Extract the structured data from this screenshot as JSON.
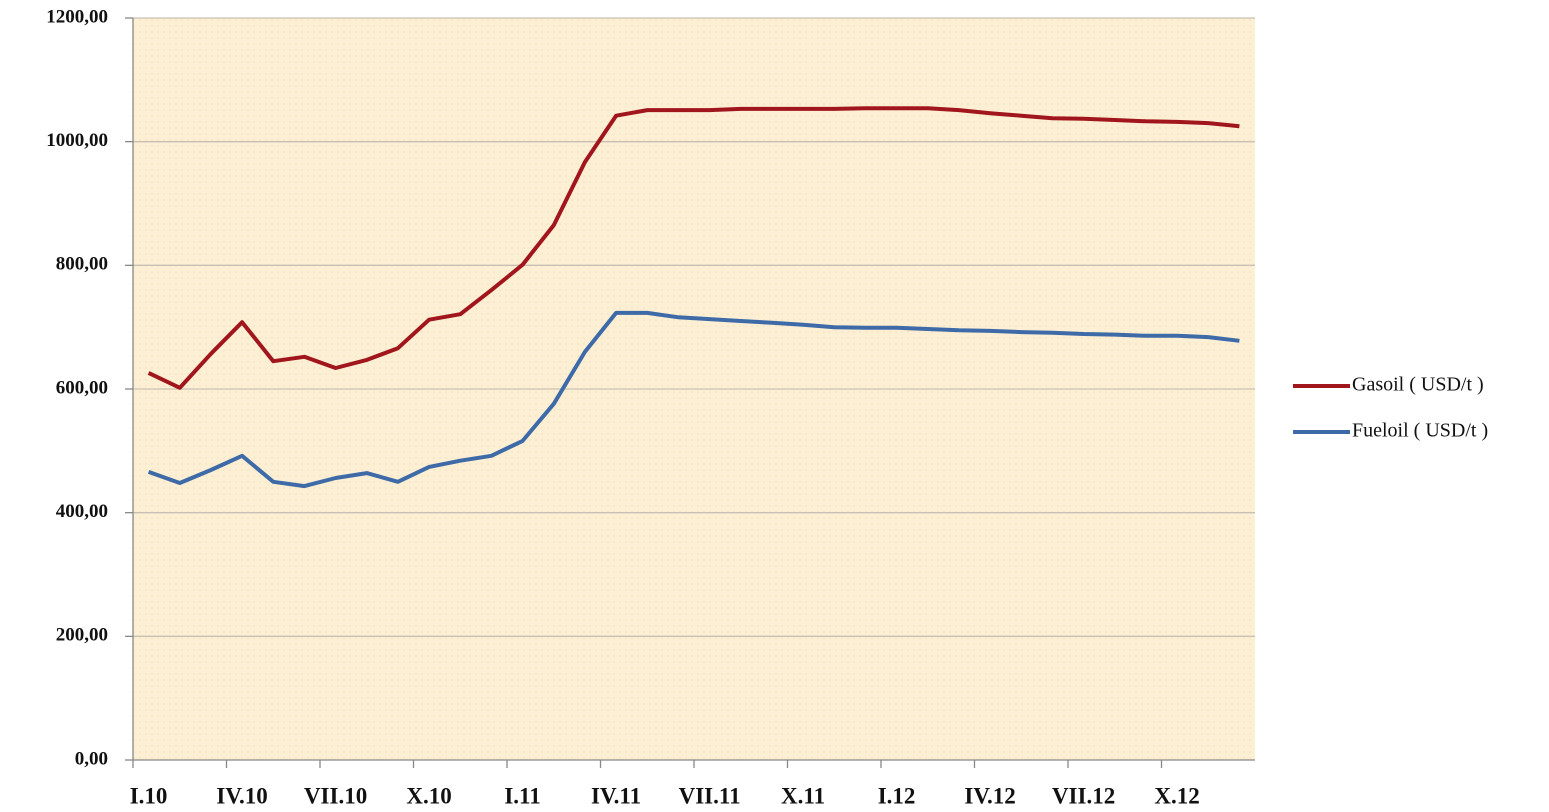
{
  "chart_data": {
    "type": "line",
    "categories": [
      "I.10",
      null,
      null,
      "IV.10",
      null,
      null,
      "VII.10",
      null,
      null,
      "X.10",
      null,
      null,
      "I.11",
      null,
      null,
      "IV.11",
      null,
      null,
      "VII.11",
      null,
      null,
      "X.11",
      null,
      null,
      "I.12",
      null,
      null,
      "IV.12",
      null,
      null,
      "VII.12",
      null,
      null,
      "X.12",
      null,
      null
    ],
    "series": [
      {
        "name": "Gasoil ( USD/t )",
        "color": "#a0161c",
        "values": [
          626,
          602,
          657,
          708,
          645,
          652,
          634,
          647,
          666,
          712,
          721,
          760,
          801,
          865,
          967,
          1042,
          1051,
          1051,
          1051,
          1053,
          1053,
          1053,
          1053,
          1054,
          1054,
          1054,
          1051,
          1046,
          1042,
          1038,
          1037,
          1035,
          1033,
          1032,
          1030,
          1025
        ]
      },
      {
        "name": "Fueloil ( USD/t )",
        "color": "#3e6aa8",
        "values": [
          466,
          448,
          469,
          492,
          450,
          443,
          456,
          464,
          450,
          474,
          484,
          492,
          516,
          576,
          660,
          723,
          723,
          716,
          713,
          710,
          707,
          704,
          700,
          699,
          699,
          697,
          695,
          694,
          692,
          691,
          689,
          688,
          686,
          686,
          684,
          678
        ]
      }
    ],
    "ylim": [
      0,
      1200
    ],
    "yticks": [
      {
        "value": 0,
        "label": "0,00"
      },
      {
        "value": 200,
        "label": "200,00"
      },
      {
        "value": 400,
        "label": "400,00"
      },
      {
        "value": 600,
        "label": "600,00"
      },
      {
        "value": 800,
        "label": "800,00"
      },
      {
        "value": 1000,
        "label": "1000,00"
      },
      {
        "value": 1200,
        "label": "1200,00"
      }
    ],
    "grid": true,
    "legend": "right"
  }
}
